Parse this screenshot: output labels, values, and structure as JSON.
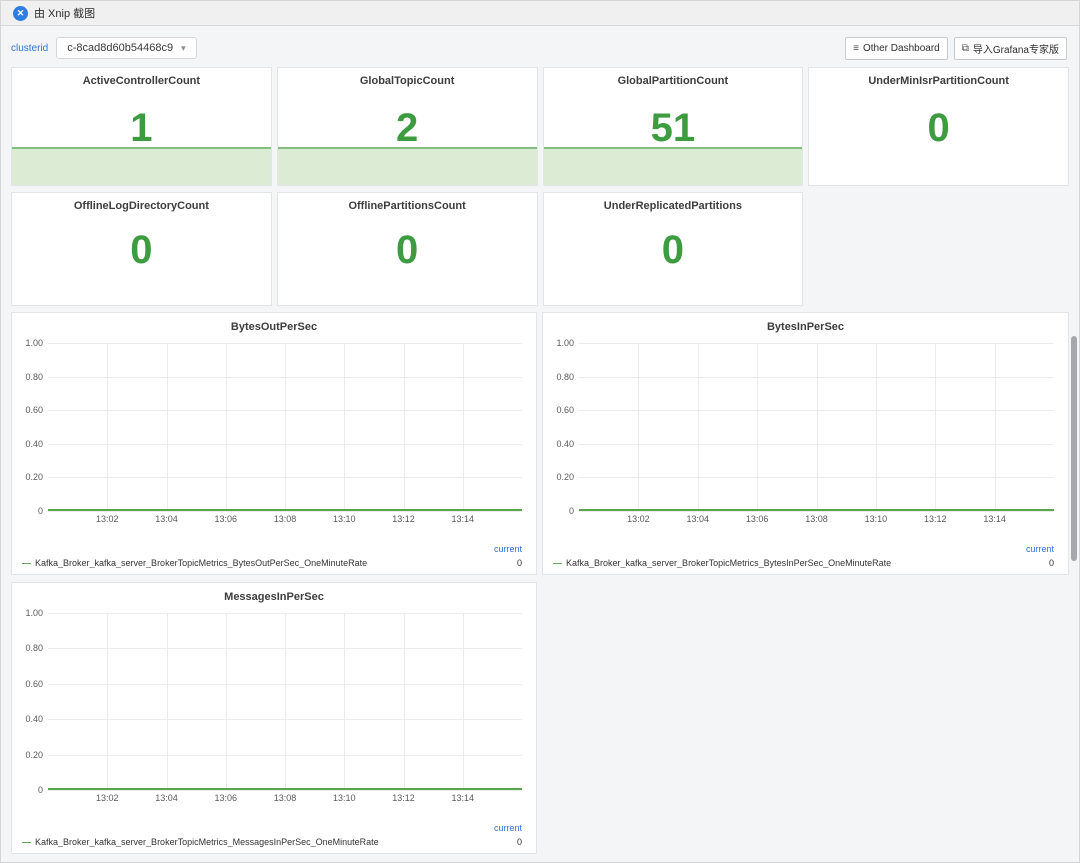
{
  "titlebar": {
    "app_title": "由 Xnip 截图"
  },
  "toolbar": {
    "cluster_label": "clusterid",
    "cluster_select_value": "c-8cad8d60b54468c9",
    "other_dashboard_label": "Other Dashboard",
    "import_grafana_label": "导入Grafana专家版"
  },
  "colors": {
    "stat_green": "#3d9c40",
    "sparkline_fill": "#dcecd4",
    "sparkline_line": "#7ec17e",
    "series_green": "#57a64a",
    "accent_blue": "#3274d9"
  },
  "stats": [
    {
      "title": "ActiveControllerCount",
      "value": "1",
      "sparkline": true
    },
    {
      "title": "GlobalTopicCount",
      "value": "2",
      "sparkline": true
    },
    {
      "title": "GlobalPartitionCount",
      "value": "51",
      "sparkline": true
    },
    {
      "title": "UnderMinIsrPartitionCount",
      "value": "0",
      "sparkline": false
    },
    {
      "title": "OfflineLogDirectoryCount",
      "value": "0",
      "sparkline": false
    },
    {
      "title": "OfflinePartitionsCount",
      "value": "0",
      "sparkline": false
    },
    {
      "title": "UnderReplicatedPartitions",
      "value": "0",
      "sparkline": false
    }
  ],
  "chart_data": [
    {
      "type": "line",
      "title": "BytesOutPerSec",
      "x": [
        "13:02",
        "13:04",
        "13:06",
        "13:08",
        "13:10",
        "13:12",
        "13:14"
      ],
      "yticks": [
        "1.00",
        "0.80",
        "0.60",
        "0.40",
        "0.20",
        "0"
      ],
      "ylim": [
        0,
        1
      ],
      "grid": true,
      "legend_position": "bottom",
      "legend_current_label": "current",
      "series": [
        {
          "name": "Kafka_Broker_kafka_server_BrokerTopicMetrics_BytesOutPerSec_OneMinuteRate",
          "values": [
            0,
            0,
            0,
            0,
            0,
            0,
            0
          ],
          "current": "0"
        }
      ]
    },
    {
      "type": "line",
      "title": "BytesInPerSec",
      "x": [
        "13:02",
        "13:04",
        "13:06",
        "13:08",
        "13:10",
        "13:12",
        "13:14"
      ],
      "yticks": [
        "1.00",
        "0.80",
        "0.60",
        "0.40",
        "0.20",
        "0"
      ],
      "ylim": [
        0,
        1
      ],
      "grid": true,
      "legend_position": "bottom",
      "legend_current_label": "current",
      "series": [
        {
          "name": "Kafka_Broker_kafka_server_BrokerTopicMetrics_BytesInPerSec_OneMinuteRate",
          "values": [
            0,
            0,
            0,
            0,
            0,
            0,
            0
          ],
          "current": "0"
        }
      ]
    },
    {
      "type": "line",
      "title": "MessagesInPerSec",
      "x": [
        "13:02",
        "13:04",
        "13:06",
        "13:08",
        "13:10",
        "13:12",
        "13:14"
      ],
      "yticks": [
        "1.00",
        "0.80",
        "0.60",
        "0.40",
        "0.20",
        "0"
      ],
      "ylim": [
        0,
        1
      ],
      "grid": true,
      "legend_position": "bottom",
      "legend_current_label": "current",
      "series": [
        {
          "name": "Kafka_Broker_kafka_server_BrokerTopicMetrics_MessagesInPerSec_OneMinuteRate",
          "values": [
            0,
            0,
            0,
            0,
            0,
            0,
            0
          ],
          "current": "0"
        }
      ]
    }
  ]
}
